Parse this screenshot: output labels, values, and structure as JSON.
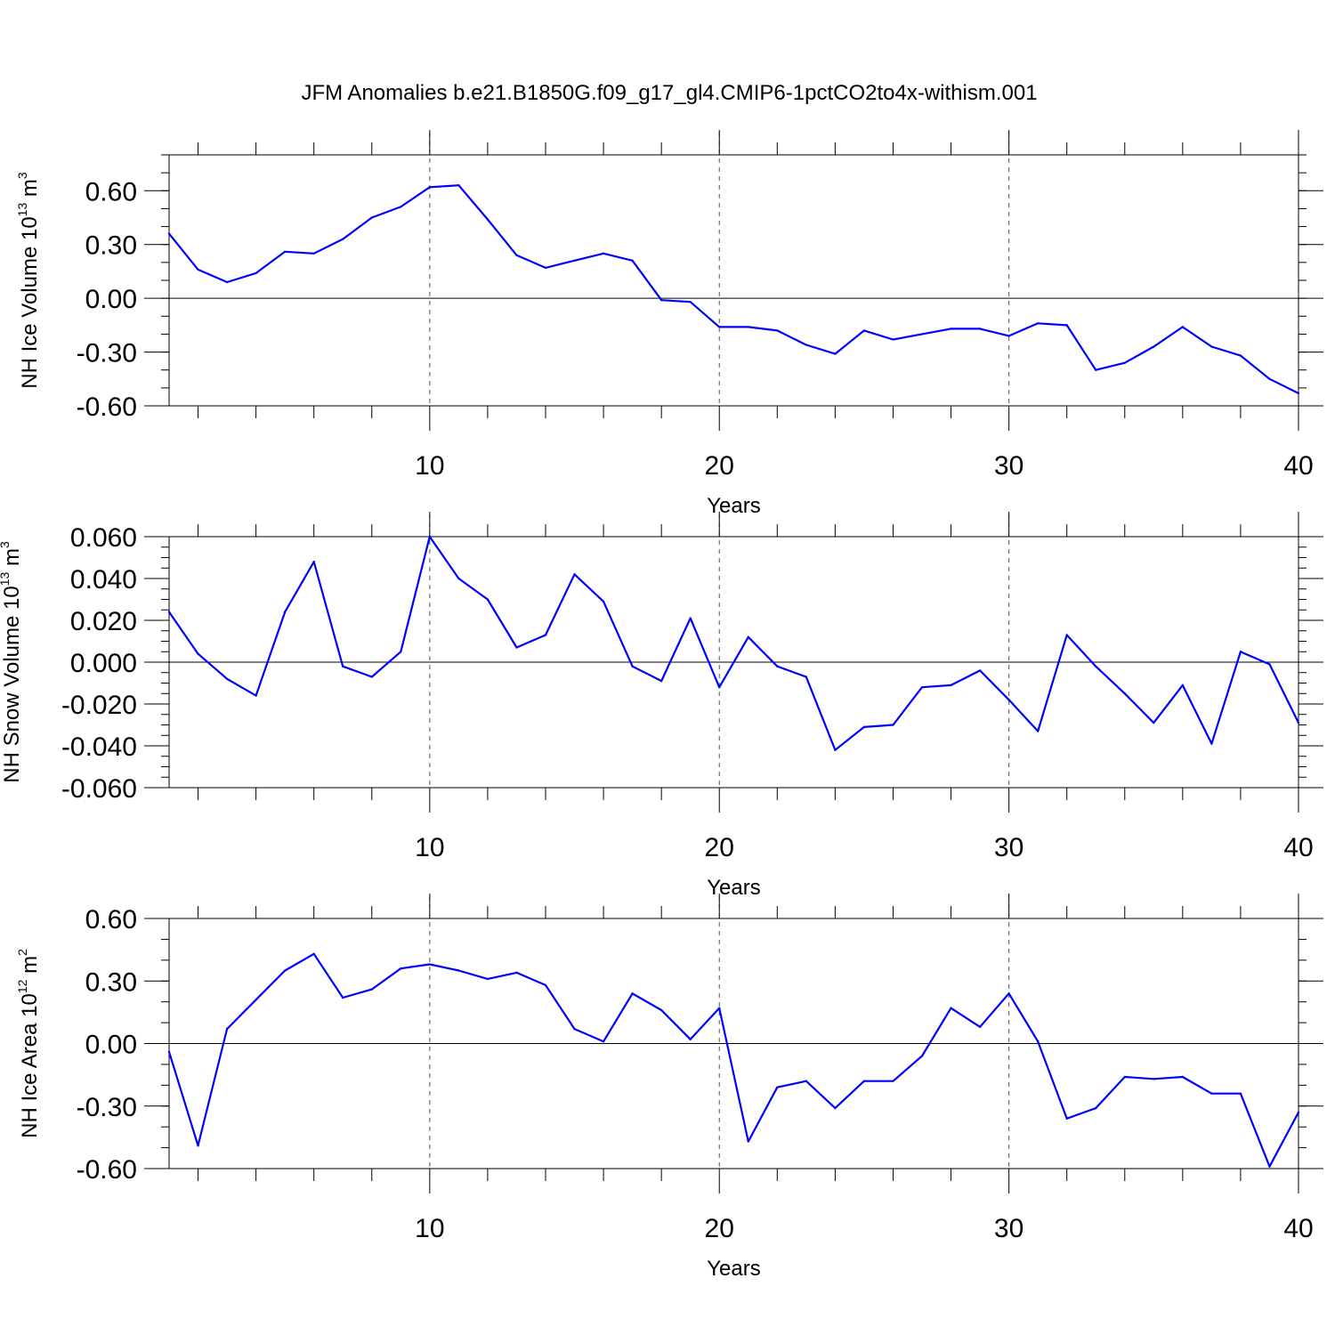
{
  "title": "JFM Anomalies b.e21.B1850G.f09_g17_gl4.CMIP6-1pctCO2to4x-withism.001",
  "colors": {
    "series": "#0000ff",
    "grid": "#555555",
    "axis": "#000000"
  },
  "chart_data": [
    {
      "type": "line",
      "id": "ice-volume",
      "ylabel_main": "NH Ice Volume 10",
      "ylabel_exp": "13",
      "ylabel_unit": " m",
      "ylabel_unit_exp": "3",
      "xlabel": "Years",
      "xlim": [
        1,
        40
      ],
      "ylim": [
        -0.6,
        0.8
      ],
      "yticks": [
        -0.6,
        -0.3,
        0.0,
        0.3,
        0.6
      ],
      "ytick_labels": [
        "-0.60",
        "-0.30",
        "0.00",
        "0.30",
        "0.60"
      ],
      "yminor_step": 0.1,
      "xticks": [
        10,
        20,
        30,
        40
      ],
      "xtick_labels": [
        "10",
        "20",
        "30",
        "40"
      ],
      "vgrid": [
        10,
        20,
        30
      ],
      "x": [
        1,
        2,
        3,
        4,
        5,
        6,
        7,
        8,
        9,
        10,
        11,
        12,
        13,
        14,
        15,
        16,
        17,
        18,
        19,
        20,
        21,
        22,
        23,
        24,
        25,
        26,
        27,
        28,
        29,
        30,
        31,
        32,
        33,
        34,
        35,
        36,
        37,
        38,
        39,
        40
      ],
      "y": [
        0.36,
        0.16,
        0.09,
        0.14,
        0.26,
        0.25,
        0.33,
        0.45,
        0.51,
        0.62,
        0.63,
        0.44,
        0.24,
        0.17,
        0.21,
        0.25,
        0.21,
        -0.01,
        -0.02,
        -0.16,
        -0.16,
        -0.18,
        -0.26,
        -0.31,
        -0.18,
        -0.23,
        -0.2,
        -0.17,
        -0.17,
        -0.21,
        -0.14,
        -0.15,
        -0.4,
        -0.36,
        -0.27,
        -0.16,
        -0.27,
        -0.32,
        -0.45,
        -0.53
      ]
    },
    {
      "type": "line",
      "id": "snow-volume",
      "ylabel_main": "NH Snow Volume 10",
      "ylabel_exp": "13",
      "ylabel_unit": " m",
      "ylabel_unit_exp": "3",
      "xlabel": "Years",
      "xlim": [
        1,
        40
      ],
      "ylim": [
        -0.06,
        0.06
      ],
      "yticks": [
        -0.06,
        -0.04,
        -0.02,
        0.0,
        0.02,
        0.04,
        0.06
      ],
      "ytick_labels": [
        "-0.060",
        "-0.040",
        "-0.020",
        "0.000",
        "0.020",
        "0.040",
        "0.060"
      ],
      "yminor_step": 0.005,
      "xticks": [
        10,
        20,
        30,
        40
      ],
      "xtick_labels": [
        "10",
        "20",
        "30",
        "40"
      ],
      "vgrid": [
        10,
        20,
        30
      ],
      "x": [
        1,
        2,
        3,
        4,
        5,
        6,
        7,
        8,
        9,
        10,
        11,
        12,
        13,
        14,
        15,
        16,
        17,
        18,
        19,
        20,
        21,
        22,
        23,
        24,
        25,
        26,
        27,
        28,
        29,
        30,
        31,
        32,
        33,
        34,
        35,
        36,
        37,
        38,
        39,
        40
      ],
      "y": [
        0.024,
        0.004,
        -0.008,
        -0.016,
        0.024,
        0.048,
        -0.002,
        -0.007,
        0.005,
        0.06,
        0.04,
        0.03,
        0.007,
        0.013,
        0.042,
        0.029,
        -0.002,
        -0.009,
        0.021,
        -0.012,
        0.012,
        -0.002,
        -0.007,
        -0.042,
        -0.031,
        -0.03,
        -0.012,
        -0.011,
        -0.004,
        -0.018,
        -0.033,
        0.013,
        -0.002,
        -0.015,
        -0.029,
        -0.011,
        -0.039,
        0.005,
        -0.001,
        -0.029
      ]
    },
    {
      "type": "line",
      "id": "ice-area",
      "ylabel_main": "NH Ice Area 10",
      "ylabel_exp": "12",
      "ylabel_unit": " m",
      "ylabel_unit_exp": "2",
      "xlabel": "Years",
      "xlim": [
        1,
        40
      ],
      "ylim": [
        -0.6,
        0.6
      ],
      "yticks": [
        -0.6,
        -0.3,
        0.0,
        0.3,
        0.6
      ],
      "ytick_labels": [
        "-0.60",
        "-0.30",
        "0.00",
        "0.30",
        "0.60"
      ],
      "yminor_step": 0.1,
      "xticks": [
        10,
        20,
        30,
        40
      ],
      "xtick_labels": [
        "10",
        "20",
        "30",
        "40"
      ],
      "vgrid": [
        10,
        20,
        30
      ],
      "x": [
        1,
        2,
        3,
        4,
        5,
        6,
        7,
        8,
        9,
        10,
        11,
        12,
        13,
        14,
        15,
        16,
        17,
        18,
        19,
        20,
        21,
        22,
        23,
        24,
        25,
        26,
        27,
        28,
        29,
        30,
        31,
        32,
        33,
        34,
        35,
        36,
        37,
        38,
        39,
        40
      ],
      "y": [
        -0.04,
        -0.49,
        0.07,
        0.21,
        0.35,
        0.43,
        0.22,
        0.26,
        0.36,
        0.38,
        0.35,
        0.31,
        0.34,
        0.28,
        0.07,
        0.01,
        0.24,
        0.16,
        0.02,
        0.17,
        -0.47,
        -0.21,
        -0.18,
        -0.31,
        -0.18,
        -0.18,
        -0.06,
        0.17,
        0.08,
        0.24,
        0.01,
        -0.36,
        -0.31,
        -0.16,
        -0.17,
        -0.16,
        -0.24,
        -0.24,
        -0.59,
        -0.33
      ]
    }
  ]
}
